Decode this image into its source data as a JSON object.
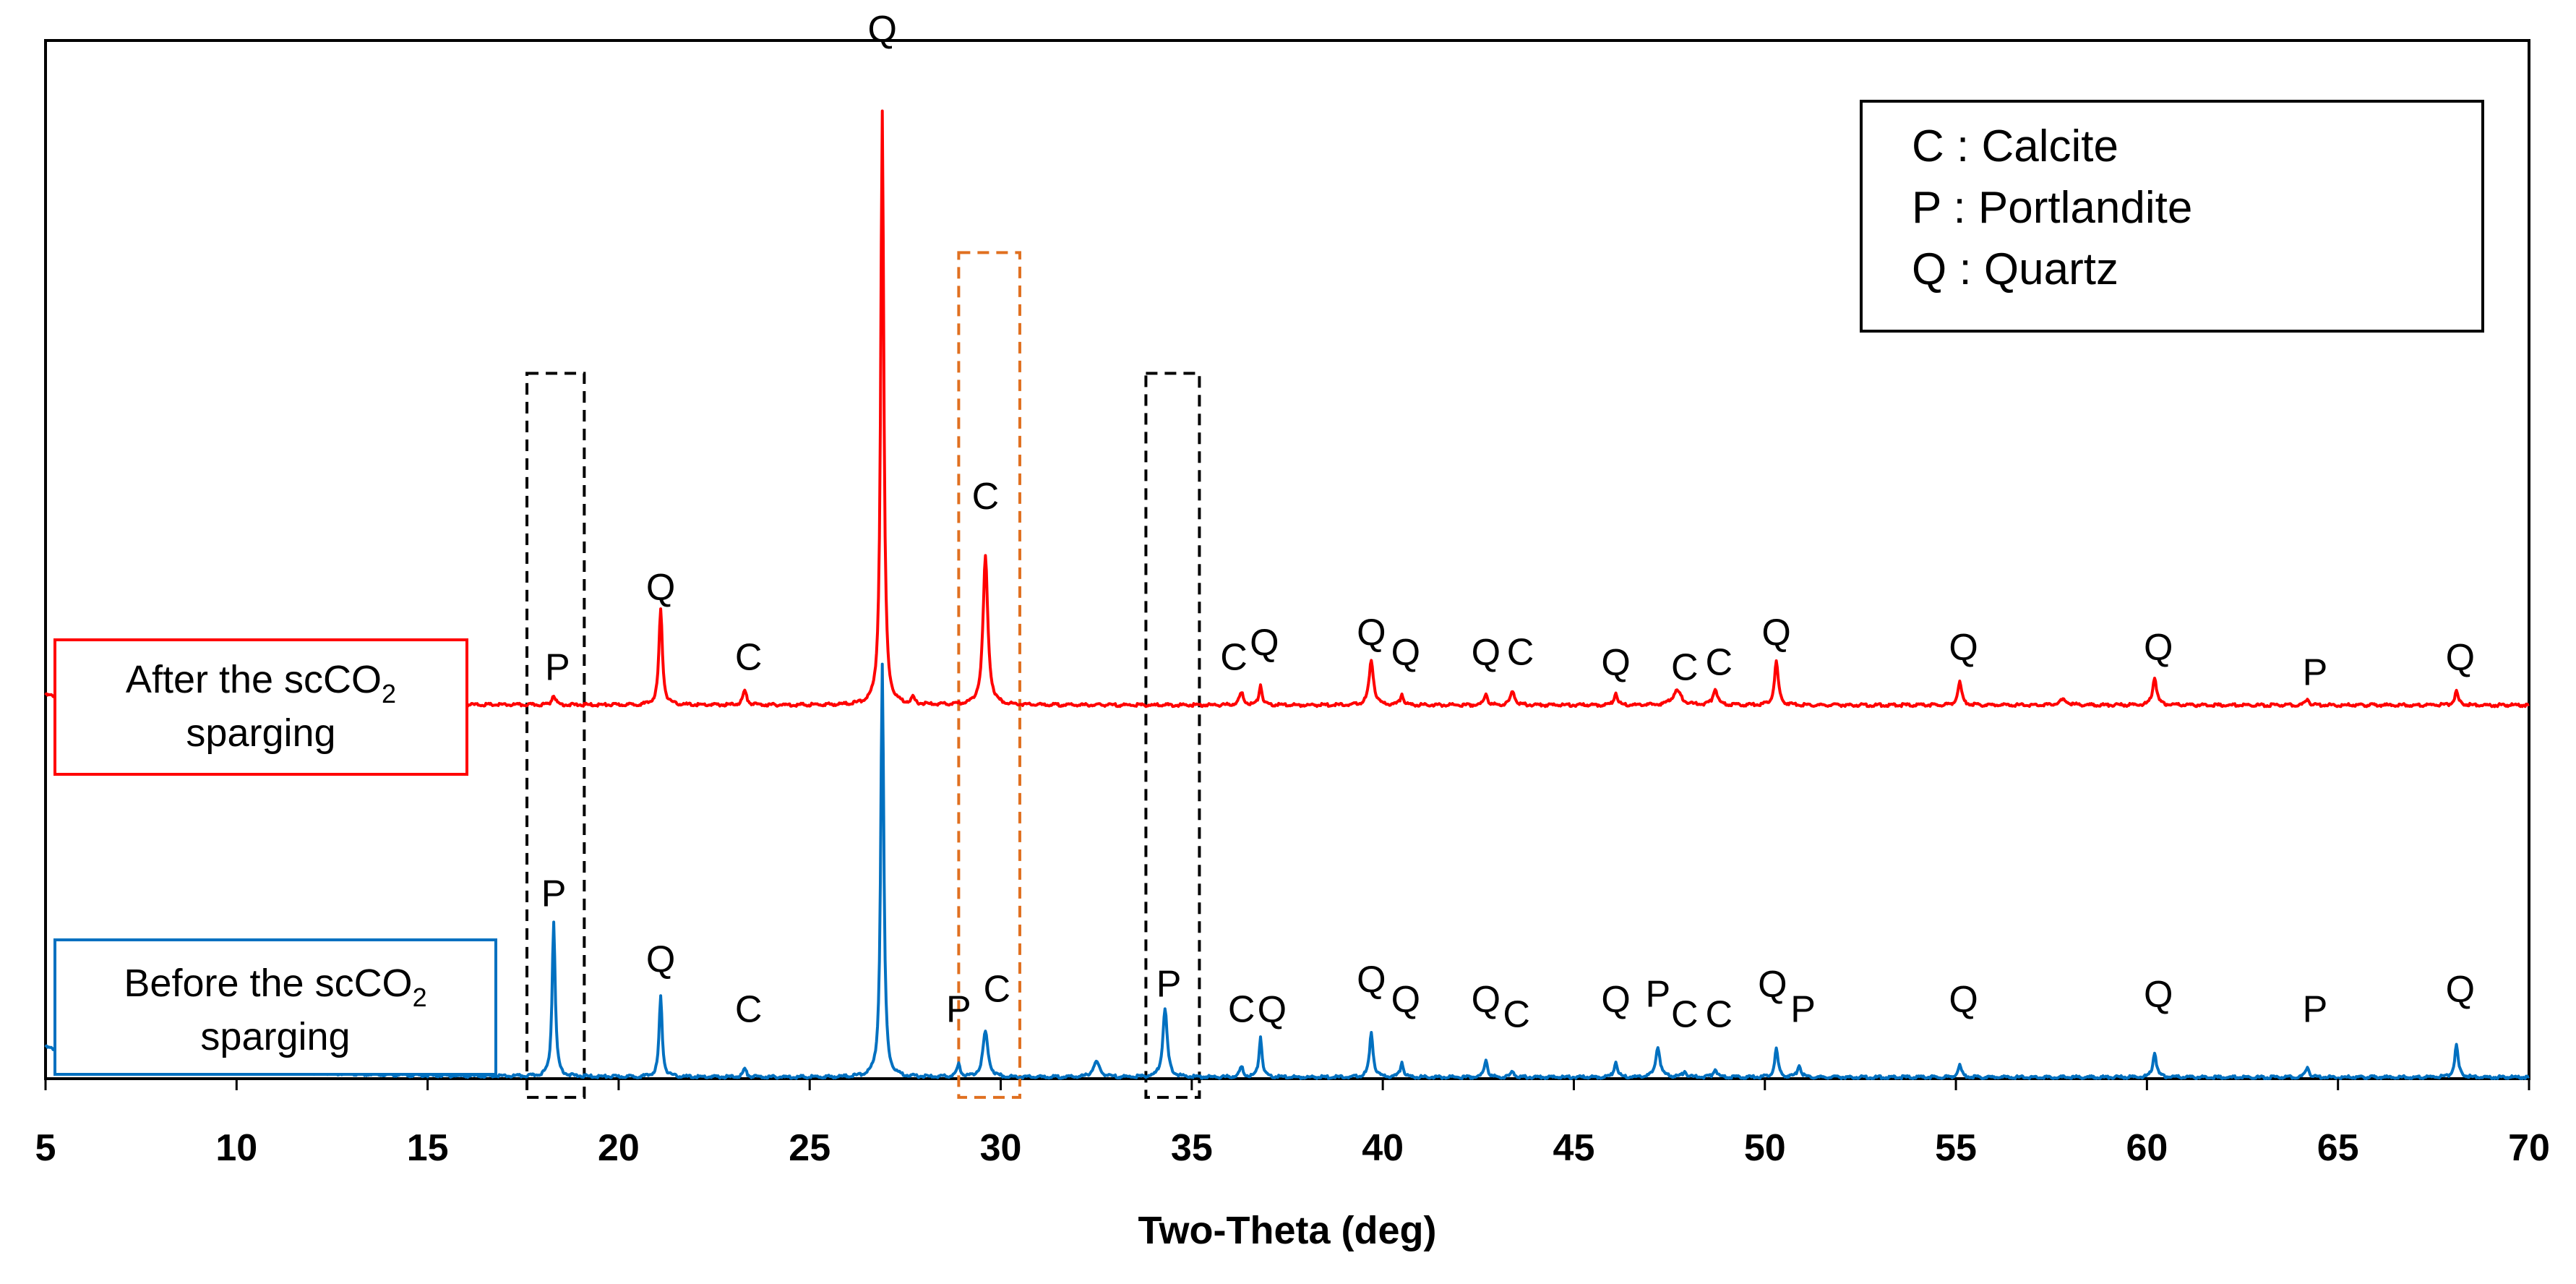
{
  "chart_data": {
    "type": "line",
    "title": "",
    "xlabel": "Two-Theta (deg)",
    "ylabel": "",
    "xlim": [
      5,
      70
    ],
    "xticks": [
      5,
      10,
      15,
      20,
      25,
      30,
      35,
      40,
      45,
      50,
      55,
      60,
      65,
      70
    ],
    "legend": {
      "position": "top-right",
      "entries": [
        "C : Calcite",
        "P : Portlandite",
        "Q : Quartz"
      ]
    },
    "series": [
      {
        "name": "After the scCO2 sparging",
        "label_main": "After the scCO",
        "label_sub": "2",
        "label_line2": "sparging",
        "color": "#ff0000",
        "baseline": 0.37,
        "peaks": [
          {
            "x": 18.3,
            "h": 0.01,
            "w": 0.08,
            "label": "P"
          },
          {
            "x": 21.1,
            "h": 0.095,
            "w": 0.08,
            "label": "Q"
          },
          {
            "x": 23.3,
            "h": 0.014,
            "w": 0.09,
            "label": "C"
          },
          {
            "x": 26.9,
            "h": 0.59,
            "w": 0.07,
            "label": "Q"
          },
          {
            "x": 27.7,
            "h": 0.006,
            "w": 0.08,
            "label": ""
          },
          {
            "x": 29.6,
            "h": 0.148,
            "w": 0.11,
            "label": "C"
          },
          {
            "x": 36.3,
            "h": 0.012,
            "w": 0.1,
            "label": "C"
          },
          {
            "x": 36.8,
            "h": 0.02,
            "w": 0.07,
            "label": "Q"
          },
          {
            "x": 39.7,
            "h": 0.045,
            "w": 0.1,
            "label": "Q"
          },
          {
            "x": 40.5,
            "h": 0.011,
            "w": 0.07,
            "label": "Q"
          },
          {
            "x": 42.7,
            "h": 0.012,
            "w": 0.07,
            "label": "Q"
          },
          {
            "x": 43.4,
            "h": 0.014,
            "w": 0.1,
            "label": "C"
          },
          {
            "x": 46.1,
            "h": 0.012,
            "w": 0.08,
            "label": "Q"
          },
          {
            "x": 47.7,
            "h": 0.014,
            "w": 0.2,
            "label": "C"
          },
          {
            "x": 48.7,
            "h": 0.016,
            "w": 0.1,
            "label": "C"
          },
          {
            "x": 50.3,
            "h": 0.043,
            "w": 0.09,
            "label": "Q"
          },
          {
            "x": 55.1,
            "h": 0.023,
            "w": 0.09,
            "label": "Q"
          },
          {
            "x": 57.8,
            "h": 0.005,
            "w": 0.2,
            "label": ""
          },
          {
            "x": 60.2,
            "h": 0.028,
            "w": 0.09,
            "label": "Q"
          },
          {
            "x": 64.2,
            "h": 0.006,
            "w": 0.08,
            "label": "P"
          },
          {
            "x": 68.1,
            "h": 0.014,
            "w": 0.08,
            "label": "Q"
          }
        ]
      },
      {
        "name": "Before the scCO2 sparging",
        "label_main": "Before the scCO",
        "label_sub": "2",
        "label_line2": "sparging",
        "color": "#0070c0",
        "baseline": 0.0,
        "peaks": [
          {
            "x": 18.3,
            "h": 0.155,
            "w": 0.07,
            "label": "P"
          },
          {
            "x": 21.1,
            "h": 0.08,
            "w": 0.07,
            "label": "Q"
          },
          {
            "x": 23.3,
            "h": 0.008,
            "w": 0.08,
            "label": "C"
          },
          {
            "x": 26.9,
            "h": 0.41,
            "w": 0.07,
            "label": ""
          },
          {
            "x": 28.9,
            "h": 0.012,
            "w": 0.08,
            "label": "P"
          },
          {
            "x": 29.6,
            "h": 0.045,
            "w": 0.12,
            "label": "C"
          },
          {
            "x": 32.5,
            "h": 0.015,
            "w": 0.15,
            "label": ""
          },
          {
            "x": 34.3,
            "h": 0.068,
            "w": 0.1,
            "label": "P"
          },
          {
            "x": 36.3,
            "h": 0.01,
            "w": 0.08,
            "label": "C"
          },
          {
            "x": 36.8,
            "h": 0.04,
            "w": 0.07,
            "label": "Q"
          },
          {
            "x": 39.7,
            "h": 0.045,
            "w": 0.08,
            "label": "Q"
          },
          {
            "x": 40.5,
            "h": 0.015,
            "w": 0.07,
            "label": "Q"
          },
          {
            "x": 42.7,
            "h": 0.018,
            "w": 0.07,
            "label": "Q"
          },
          {
            "x": 43.4,
            "h": 0.006,
            "w": 0.08,
            "label": "C"
          },
          {
            "x": 46.1,
            "h": 0.015,
            "w": 0.08,
            "label": "Q"
          },
          {
            "x": 47.2,
            "h": 0.03,
            "w": 0.1,
            "label": "P"
          },
          {
            "x": 47.9,
            "h": 0.006,
            "w": 0.08,
            "label": "C"
          },
          {
            "x": 48.7,
            "h": 0.008,
            "w": 0.08,
            "label": "C"
          },
          {
            "x": 50.3,
            "h": 0.028,
            "w": 0.08,
            "label": "Q"
          },
          {
            "x": 50.9,
            "h": 0.012,
            "w": 0.08,
            "label": "P"
          },
          {
            "x": 55.1,
            "h": 0.012,
            "w": 0.08,
            "label": "Q"
          },
          {
            "x": 60.2,
            "h": 0.025,
            "w": 0.08,
            "label": "Q"
          },
          {
            "x": 64.2,
            "h": 0.01,
            "w": 0.08,
            "label": "P"
          },
          {
            "x": 68.1,
            "h": 0.032,
            "w": 0.08,
            "label": "Q"
          }
        ]
      }
    ],
    "peak_label_positions": [
      {
        "text": "Q",
        "x": 26.9,
        "y": 1.03
      },
      {
        "text": "C",
        "x": 29.6,
        "y": 0.565
      },
      {
        "text": "Q",
        "x": 21.1,
        "y": 0.475
      },
      {
        "text": "P",
        "x": 18.4,
        "y": 0.395
      },
      {
        "text": "C",
        "x": 23.4,
        "y": 0.405
      },
      {
        "text": "C",
        "x": 36.1,
        "y": 0.405
      },
      {
        "text": "Q",
        "x": 36.9,
        "y": 0.42
      },
      {
        "text": "Q",
        "x": 39.7,
        "y": 0.43
      },
      {
        "text": "Q",
        "x": 40.6,
        "y": 0.41
      },
      {
        "text": "Q",
        "x": 42.7,
        "y": 0.41
      },
      {
        "text": "C",
        "x": 43.6,
        "y": 0.41
      },
      {
        "text": "Q",
        "x": 46.1,
        "y": 0.4
      },
      {
        "text": "C",
        "x": 47.9,
        "y": 0.395
      },
      {
        "text": "C",
        "x": 48.8,
        "y": 0.4
      },
      {
        "text": "Q",
        "x": 50.3,
        "y": 0.43
      },
      {
        "text": "Q",
        "x": 55.2,
        "y": 0.415
      },
      {
        "text": "Q",
        "x": 60.3,
        "y": 0.415
      },
      {
        "text": "P",
        "x": 64.4,
        "y": 0.39
      },
      {
        "text": "Q",
        "x": 68.2,
        "y": 0.405
      },
      {
        "text": "P",
        "x": 18.3,
        "y": 0.17
      },
      {
        "text": "Q",
        "x": 21.1,
        "y": 0.105
      },
      {
        "text": "C",
        "x": 23.4,
        "y": 0.055
      },
      {
        "text": "P",
        "x": 28.9,
        "y": 0.055
      },
      {
        "text": "C",
        "x": 29.9,
        "y": 0.075
      },
      {
        "text": "P",
        "x": 34.4,
        "y": 0.08
      },
      {
        "text": "C",
        "x": 36.3,
        "y": 0.055
      },
      {
        "text": "Q",
        "x": 37.1,
        "y": 0.055
      },
      {
        "text": "Q",
        "x": 39.7,
        "y": 0.085
      },
      {
        "text": "Q",
        "x": 40.6,
        "y": 0.065
      },
      {
        "text": "Q",
        "x": 42.7,
        "y": 0.065
      },
      {
        "text": "C",
        "x": 43.5,
        "y": 0.05
      },
      {
        "text": "Q",
        "x": 46.1,
        "y": 0.065
      },
      {
        "text": "P",
        "x": 47.2,
        "y": 0.07
      },
      {
        "text": "C",
        "x": 47.9,
        "y": 0.05
      },
      {
        "text": "C",
        "x": 48.8,
        "y": 0.05
      },
      {
        "text": "Q",
        "x": 50.2,
        "y": 0.08
      },
      {
        "text": "P",
        "x": 51.0,
        "y": 0.055
      },
      {
        "text": "Q",
        "x": 55.2,
        "y": 0.065
      },
      {
        "text": "Q",
        "x": 60.3,
        "y": 0.07
      },
      {
        "text": "P",
        "x": 64.4,
        "y": 0.055
      },
      {
        "text": "Q",
        "x": 68.2,
        "y": 0.075
      }
    ],
    "highlight_regions": [
      {
        "x0": 17.6,
        "x1": 19.1,
        "y0": -0.02,
        "y1": 0.7,
        "color": "#000000"
      },
      {
        "x0": 28.9,
        "x1": 30.5,
        "y0": -0.02,
        "y1": 0.82,
        "color": "#e07020"
      },
      {
        "x0": 33.8,
        "x1": 35.2,
        "y0": -0.02,
        "y1": 0.7,
        "color": "#000000"
      }
    ]
  }
}
